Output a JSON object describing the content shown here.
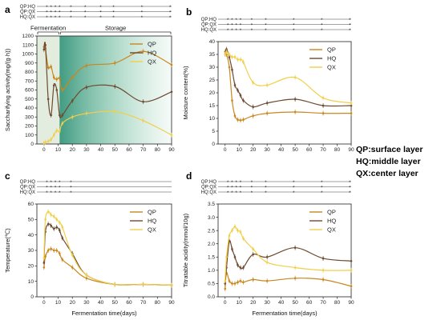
{
  "figure_notes": {
    "lines": [
      "QP:surface layer",
      "HQ:middle layer",
      "QX:center layer"
    ]
  },
  "chart_data": [
    {
      "panel": "a",
      "type": "line",
      "xlabel": "",
      "ylabel": "Saccharifying activity(mg/(g·h))",
      "xlim": [
        -5,
        90
      ],
      "ylim": [
        0,
        1200
      ],
      "x_ticks": [
        0,
        10,
        20,
        30,
        40,
        50,
        60,
        70,
        80,
        90
      ],
      "y_ticks": [
        0,
        100,
        200,
        300,
        400,
        500,
        600,
        700,
        800,
        900,
        1000,
        1100,
        1200
      ],
      "grid": false,
      "legend_position": "top-right",
      "phases": [
        {
          "label": "Fermentation",
          "x_start": -5,
          "x_end": 11,
          "color": "#e2ecdf"
        },
        {
          "label": "Storage",
          "x_start": 11,
          "x_end": 90,
          "color": "#2a9677"
        }
      ],
      "x": [
        0,
        1,
        3,
        5,
        7,
        9,
        11,
        13,
        20,
        30,
        50,
        70,
        90
      ],
      "series": [
        {
          "name": "QP",
          "color": "#c9871e",
          "values": [
            1080,
            1060,
            850,
            860,
            740,
            720,
            730,
            600,
            740,
            870,
            900,
            1030,
            880
          ]
        },
        {
          "name": "HQ",
          "color": "#6e4a30",
          "values": [
            1050,
            1100,
            500,
            320,
            650,
            600,
            320,
            320,
            480,
            630,
            640,
            470,
            580
          ]
        },
        {
          "name": "QX",
          "color": "#f2cf4a",
          "values": [
            10,
            20,
            30,
            50,
            100,
            150,
            140,
            230,
            300,
            340,
            360,
            260,
            100
          ]
        }
      ],
      "significance": {
        "rows": [
          "QP:HQ",
          "QP:QX",
          "HQ:QX"
        ],
        "marks": [
          "*",
          "*",
          "*",
          "*",
          "*",
          "*",
          "*",
          "*",
          "*",
          "*"
        ],
        "mark_x": [
          2,
          5,
          8,
          11,
          19,
          29,
          49,
          69,
          89,
          40
        ]
      }
    },
    {
      "panel": "b",
      "type": "line",
      "xlabel": "",
      "ylabel": "Moisture content(%)",
      "xlim": [
        -5,
        90
      ],
      "ylim": [
        0,
        40
      ],
      "x_ticks": [
        0,
        10,
        20,
        30,
        40,
        50,
        60,
        70,
        80,
        90
      ],
      "y_ticks": [
        0,
        5,
        10,
        15,
        20,
        25,
        30,
        35,
        40
      ],
      "grid": false,
      "legend_position": "top-right",
      "x": [
        0,
        1,
        3,
        5,
        7,
        9,
        11,
        13,
        20,
        30,
        50,
        70,
        90
      ],
      "series": [
        {
          "name": "QP",
          "color": "#c9871e",
          "values": [
            36,
            35,
            30,
            17,
            11,
            9.5,
            9.3,
            9.5,
            11,
            12,
            12.5,
            12,
            12
          ]
        },
        {
          "name": "HQ",
          "color": "#6e4a30",
          "values": [
            35,
            37,
            34,
            29,
            23,
            21,
            19,
            17,
            14.5,
            16,
            17.5,
            15,
            15
          ]
        },
        {
          "name": "QX",
          "color": "#f2cf4a",
          "values": [
            35,
            36,
            35,
            34,
            34,
            33,
            33,
            32,
            24,
            23,
            26,
            18,
            16
          ]
        }
      ],
      "significance": {
        "rows": [
          "QP:HQ",
          "QP:QX",
          "HQ:QX"
        ],
        "marks": [
          "*",
          "*",
          "*",
          "*",
          "*",
          "*",
          "*",
          "*",
          "*"
        ],
        "mark_x": [
          2,
          5,
          8,
          11,
          19,
          29,
          49,
          69,
          89
        ]
      }
    },
    {
      "panel": "c",
      "type": "line",
      "xlabel": "Fermentation time(days)",
      "ylabel": "Temperature(℃)",
      "xlim": [
        -5,
        90
      ],
      "ylim": [
        0,
        60
      ],
      "x_ticks": [
        0,
        10,
        20,
        30,
        40,
        50,
        60,
        70,
        80,
        90
      ],
      "y_ticks": [
        0,
        10,
        20,
        30,
        40,
        50,
        60
      ],
      "grid": false,
      "legend_position": "top-right",
      "x": [
        0,
        1,
        3,
        5,
        7,
        9,
        11,
        13,
        20,
        30,
        50,
        70,
        90
      ],
      "series": [
        {
          "name": "QP",
          "color": "#c9871e",
          "values": [
            19,
            26,
            30,
            31,
            30,
            30,
            28,
            24,
            19,
            12,
            8,
            8,
            7.5
          ]
        },
        {
          "name": "HQ",
          "color": "#6e4a30",
          "values": [
            22,
            42,
            47,
            46,
            44,
            45,
            43,
            38,
            28,
            14,
            8,
            8,
            7.5
          ]
        },
        {
          "name": "QX",
          "color": "#f2cf4a",
          "values": [
            25,
            50,
            55,
            53,
            52,
            50,
            48,
            45,
            27,
            14,
            8,
            8,
            7.5
          ]
        }
      ],
      "significance": {
        "rows": [
          "QP:HQ",
          "QP:QX",
          "HQ:QX"
        ],
        "marks": [
          "*",
          "*",
          "*",
          "*",
          "*"
        ],
        "mark_x": [
          2,
          5,
          8,
          11,
          19
        ]
      }
    },
    {
      "panel": "d",
      "type": "line",
      "xlabel": "Fermentation time(days)",
      "ylabel": "Titratable acidity(mmol/10g)",
      "xlim": [
        -5,
        90
      ],
      "ylim": [
        0,
        3.5
      ],
      "x_ticks": [
        0,
        10,
        20,
        30,
        40,
        50,
        60,
        70,
        80,
        90
      ],
      "y_ticks": [
        0,
        0.5,
        1.0,
        1.5,
        2.0,
        2.5,
        3.0,
        3.5
      ],
      "y_tick_labels": [
        "0.0",
        "0.5",
        "1.0",
        "1.5",
        "2.0",
        "2.5",
        "3.0",
        "3.5"
      ],
      "grid": false,
      "legend_position": "top-right",
      "x": [
        0,
        1,
        3,
        5,
        7,
        9,
        11,
        13,
        20,
        30,
        50,
        70,
        90
      ],
      "series": [
        {
          "name": "QP",
          "color": "#c9871e",
          "values": [
            0.3,
            0.9,
            0.6,
            0.5,
            0.5,
            0.55,
            0.6,
            0.55,
            0.65,
            0.6,
            0.7,
            0.65,
            0.4
          ]
        },
        {
          "name": "HQ",
          "color": "#6e4a30",
          "values": [
            0.5,
            1.1,
            2.1,
            1.8,
            1.5,
            1.2,
            1.1,
            1.1,
            1.6,
            1.5,
            1.85,
            1.45,
            1.35
          ]
        },
        {
          "name": "QX",
          "color": "#f2cf4a",
          "values": [
            0.6,
            1.5,
            2.3,
            2.5,
            2.65,
            2.5,
            2.45,
            2.2,
            1.8,
            1.3,
            1.1,
            1.0,
            1.0
          ]
        }
      ],
      "significance": {
        "rows": [
          "QP:HQ",
          "QP:QX",
          "HQ:QX"
        ],
        "marks": [
          "*",
          "*",
          "*",
          "*",
          "*",
          "*",
          "*",
          "*",
          "*"
        ],
        "mark_x": [
          2,
          5,
          8,
          11,
          19,
          29,
          49,
          69,
          89
        ]
      }
    }
  ]
}
